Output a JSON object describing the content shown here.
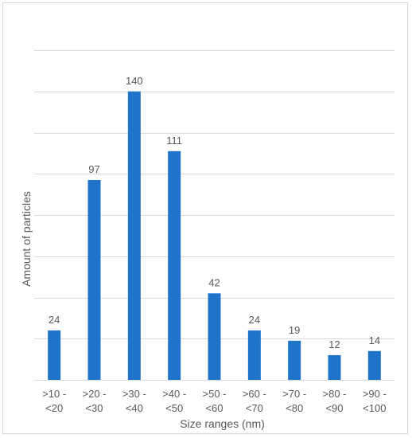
{
  "chart_data": {
    "type": "bar",
    "title": "",
    "xlabel": "Size ranges (nm)",
    "ylabel": "Amount of particles",
    "categories": [
      [
        ">10 -",
        "<20"
      ],
      [
        ">20 -",
        "<30"
      ],
      [
        ">30 -",
        "<40"
      ],
      [
        ">40 -",
        "<50"
      ],
      [
        ">50 -",
        "<60"
      ],
      [
        ">60 -",
        "<70"
      ],
      [
        ">70 -",
        "<80"
      ],
      [
        ">80 -",
        "<90"
      ],
      [
        ">90 -",
        "<100"
      ]
    ],
    "values": [
      24,
      97,
      140,
      111,
      42,
      24,
      19,
      12,
      14
    ],
    "ylim": [
      0,
      160
    ],
    "grid": true,
    "bar_color": "#1f73c9",
    "grid_color": "#d9d9d9"
  }
}
